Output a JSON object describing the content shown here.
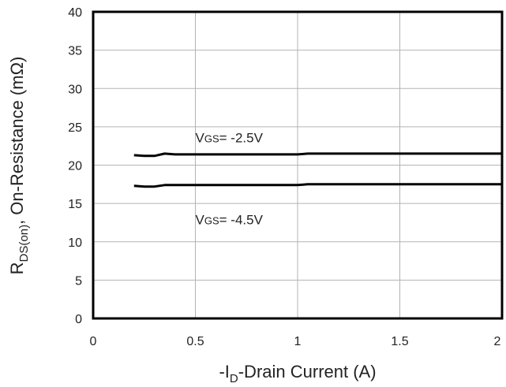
{
  "chart_data": {
    "type": "line",
    "title": "",
    "xlabel": {
      "prefix": "-I",
      "sub": "D",
      "suffix": "-Drain Current (A)"
    },
    "ylabel": {
      "prefix": "R",
      "sub": "DS(on)",
      "suffix": ", On-Resistance (mΩ)"
    },
    "xlim": [
      0,
      2
    ],
    "ylim": [
      0,
      40
    ],
    "x_ticks": [
      0,
      0.5,
      1,
      1.5,
      2
    ],
    "x_tick_labels": [
      "0",
      "0.5",
      "1",
      "1.5",
      "2"
    ],
    "y_ticks": [
      0,
      5,
      10,
      15,
      20,
      25,
      30,
      35,
      40
    ],
    "y_tick_labels": [
      "0",
      "5",
      "10",
      "15",
      "20",
      "25",
      "30",
      "35",
      "40"
    ],
    "grid": true,
    "legend": "none",
    "series": [
      {
        "color": "#000000",
        "x": [
          0.2,
          0.25,
          0.3,
          0.35,
          0.4,
          0.5,
          0.6,
          0.7,
          0.8,
          0.9,
          1.0,
          1.05,
          1.2,
          1.4,
          1.6,
          1.8,
          2.0
        ],
        "y": [
          21.3,
          21.2,
          21.2,
          21.5,
          21.4,
          21.4,
          21.4,
          21.4,
          21.4,
          21.4,
          21.4,
          21.5,
          21.5,
          21.5,
          21.5,
          21.5,
          21.5
        ]
      },
      {
        "color": "#000000",
        "x": [
          0.2,
          0.25,
          0.3,
          0.35,
          0.4,
          0.5,
          0.6,
          0.7,
          0.8,
          0.9,
          1.0,
          1.05,
          1.2,
          1.4,
          1.6,
          1.8,
          2.0
        ],
        "y": [
          17.3,
          17.2,
          17.2,
          17.4,
          17.4,
          17.4,
          17.4,
          17.4,
          17.4,
          17.4,
          17.4,
          17.5,
          17.5,
          17.5,
          17.5,
          17.5,
          17.5
        ]
      }
    ],
    "annotations": [
      {
        "x": 0.5,
        "y": 23.0,
        "prefix": "V",
        "sub": "GS",
        "suffix": "= -2.5V"
      },
      {
        "x": 0.5,
        "y": 12.3,
        "prefix": "V",
        "sub": "GS",
        "suffix": "= -4.5V"
      }
    ]
  }
}
